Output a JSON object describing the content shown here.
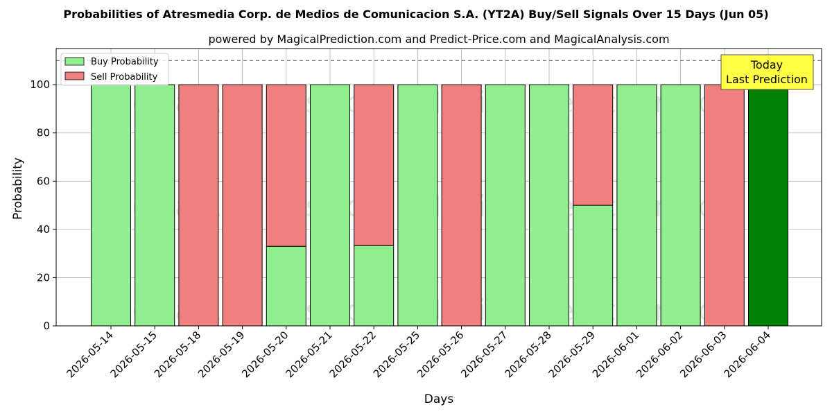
{
  "chart_data": {
    "type": "bar",
    "stacked": true,
    "title": "Probabilities of Atresmedia Corp. de Medios de Comunicacion S.A. (YT2A) Buy/Sell Signals Over 15 Days (Jun 05)",
    "subtitle": "powered by MagicalPrediction.com and Predict-Price.com and MagicalAnalysis.com",
    "xlabel": "Days",
    "ylabel": "Probability",
    "ylim": [
      0,
      115
    ],
    "yticks": [
      0,
      20,
      40,
      60,
      80,
      100
    ],
    "grid": true,
    "legend_position": "top-left",
    "reference_line": 110,
    "categories": [
      "2026-05-14",
      "2026-05-15",
      "2026-05-18",
      "2026-05-19",
      "2026-05-20",
      "2026-05-21",
      "2026-05-22",
      "2026-05-25",
      "2026-05-26",
      "2026-05-27",
      "2026-05-28",
      "2026-05-29",
      "2026-06-01",
      "2026-06-02",
      "2026-06-03",
      "2026-06-04"
    ],
    "series": [
      {
        "name": "Buy Probability",
        "color": "#90ee90",
        "values": [
          100,
          100,
          0,
          0,
          33,
          100,
          33.3,
          100,
          0,
          100,
          100,
          50,
          100,
          100,
          0,
          100
        ]
      },
      {
        "name": "Sell Probability",
        "color": "#f08080",
        "values": [
          0,
          0,
          100,
          100,
          67,
          0,
          66.7,
          0,
          100,
          0,
          0,
          50,
          0,
          0,
          100,
          0
        ]
      }
    ],
    "highlight": {
      "index": 15,
      "color": "#008000"
    },
    "annotation": {
      "line1": "Today",
      "line2": "Last Prediction",
      "background": "#ffff44"
    },
    "watermarks": [
      "MagicalAnalysis.com",
      "MagicalPrediction.com"
    ]
  }
}
